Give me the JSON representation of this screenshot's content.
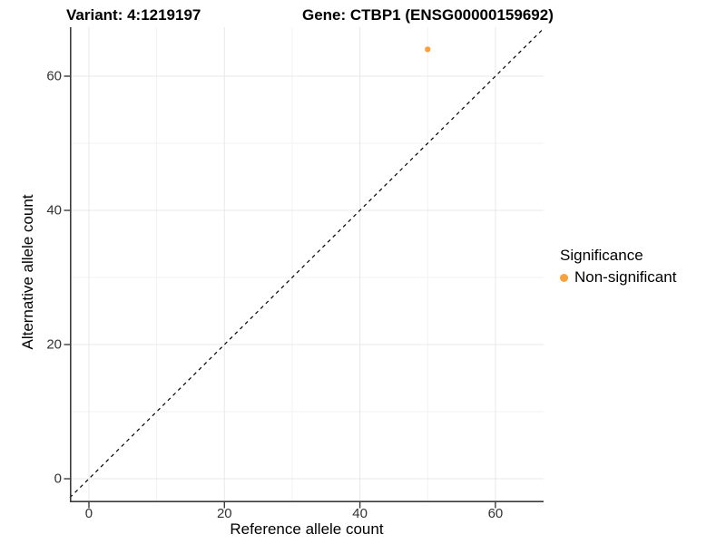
{
  "chart_data": {
    "type": "scatter",
    "title_left": "Variant: 4:1219197",
    "title_right": "Gene: CTBP1 (ENSG00000159692)",
    "xlabel": "Reference allele count",
    "ylabel": "Alternative allele count",
    "xlim": [
      -2.81,
      67.11
    ],
    "ylim": [
      -3.51,
      67.3
    ],
    "xticks": [
      0,
      20,
      40,
      60
    ],
    "yticks": [
      0,
      20,
      40,
      60
    ],
    "xticks_minor": [
      10,
      30,
      50
    ],
    "yticks_minor": [
      10,
      30,
      50
    ],
    "grid": "major+minor",
    "points": [
      {
        "x": 50,
        "y": 64,
        "series": "Non-significant"
      }
    ],
    "reference_line": {
      "type": "identity",
      "slope": 1,
      "intercept": 0,
      "style": "dashed",
      "color": "#000000"
    },
    "legend": {
      "position": "right",
      "title": "Significance",
      "entries": [
        {
          "label": "Non-significant",
          "color": "#F9A13C"
        }
      ]
    },
    "colors": {
      "point": "#F9A13C",
      "axis_line": "#3c3c3c",
      "tick_text": "#333333",
      "grid_major": "#e8e8e8",
      "grid_minor": "#f2f2f2",
      "background": "#ffffff"
    },
    "point_radius": 3.2
  }
}
